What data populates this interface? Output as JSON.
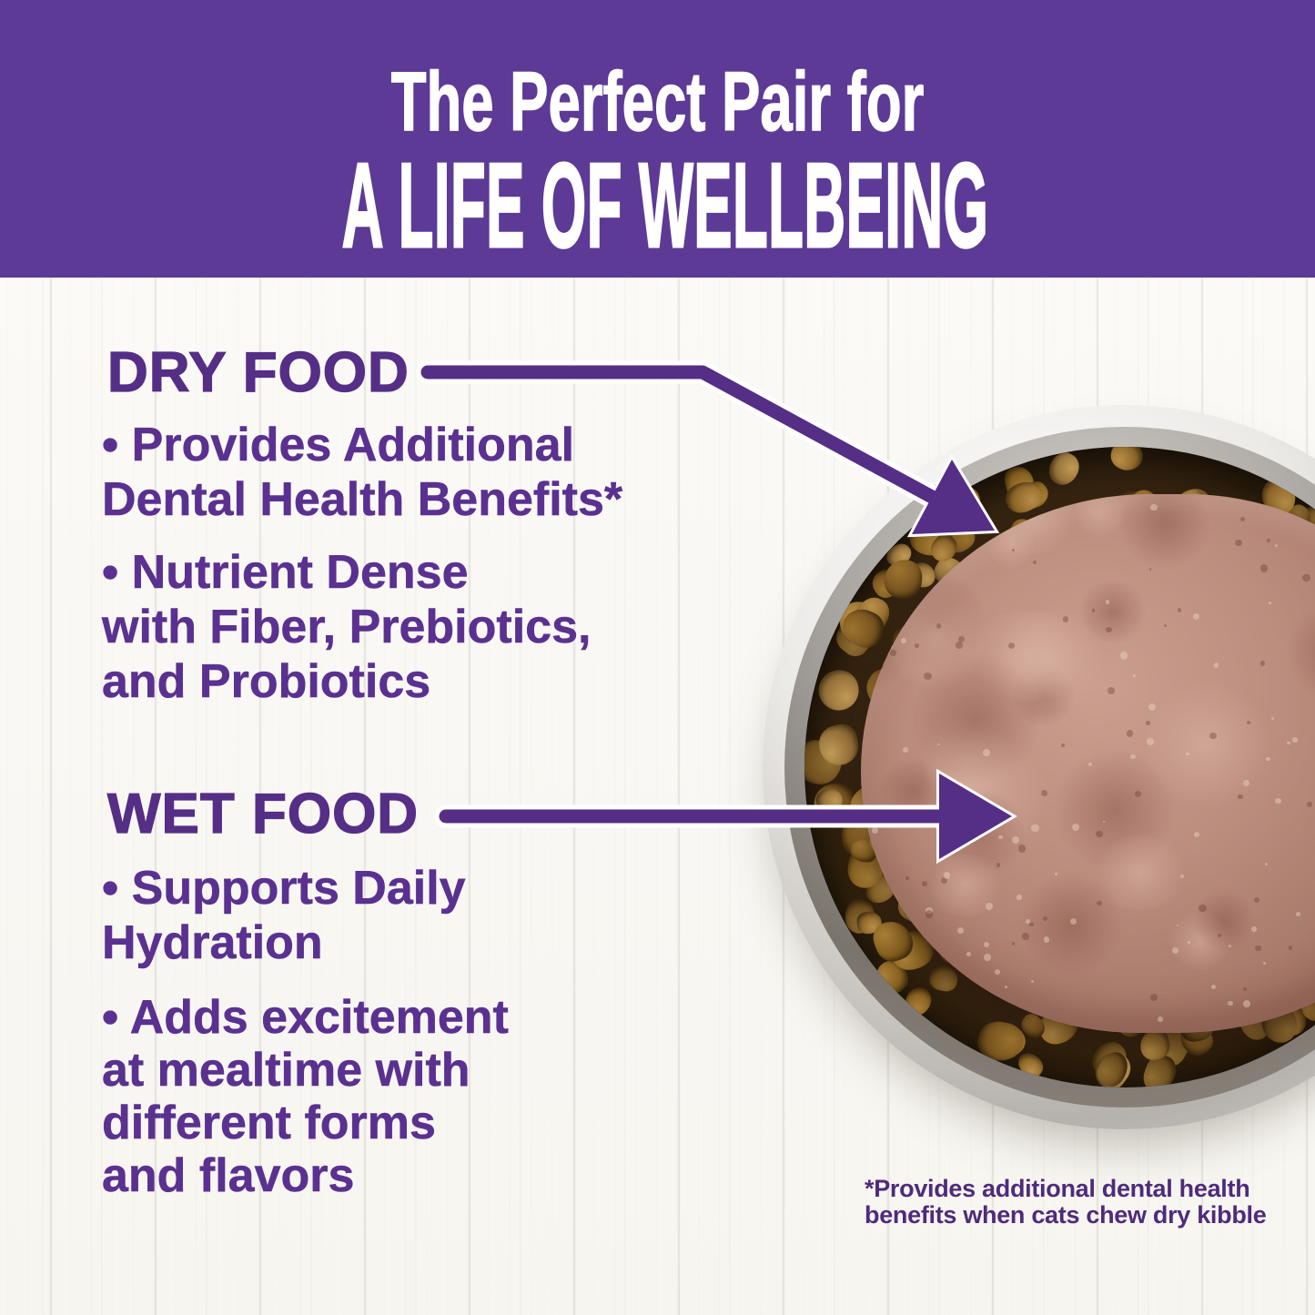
{
  "banner": {
    "line1": "The Perfect Pair for",
    "line2": "A LIFE OF WELLBEING"
  },
  "dry_section": {
    "heading": "DRY FOOD",
    "bullets": [
      {
        "lines": [
          "• Provides Additional",
          "Dental Health Benefits*"
        ]
      },
      {
        "lines": [
          "• Nutrient Dense",
          "with Fiber, Prebiotics,",
          "and Probiotics"
        ]
      }
    ]
  },
  "wet_section": {
    "heading": "WET FOOD",
    "bullets": [
      {
        "lines": [
          "• Supports Daily",
          "Hydration"
        ]
      },
      {
        "lines": [
          "• Adds excitement",
          "at mealtime with",
          "different forms",
          "and flavors"
        ]
      }
    ]
  },
  "footnote": {
    "lines": [
      "*Provides additional dental health",
      "benefits when cats chew dry kibble"
    ]
  },
  "colors": {
    "banner_bg": "#5C3A96",
    "banner_text": "#FFFFFF",
    "heading_text": "#552E86",
    "bullet_text": "#5A3190",
    "arrow": "#552E86",
    "footnote_text": "#4E2B7C",
    "kibble_brown": "#8a6428",
    "wet_food_pink": "#b5887b",
    "bowl_steel": "#c9c6c1"
  }
}
